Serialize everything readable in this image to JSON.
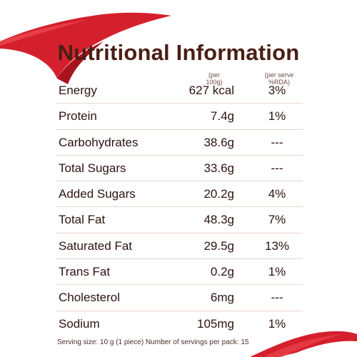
{
  "title": "Nutritional Information",
  "headers": {
    "per100": "(per 100g)",
    "perServe": "(per serve %RDA)"
  },
  "rows": [
    {
      "name": "Energy",
      "value": "627 kcal",
      "rda": "3%"
    },
    {
      "name": "Protein",
      "value": "7.4g",
      "rda": "1%"
    },
    {
      "name": "Carbohydrates",
      "value": "38.6g",
      "rda": "---"
    },
    {
      "name": "Total Sugars",
      "value": "33.6g",
      "rda": "---"
    },
    {
      "name": "Added Sugars",
      "value": "20.2g",
      "rda": "4%"
    },
    {
      "name": "Total Fat",
      "value": "48.3g",
      "rda": "7%"
    },
    {
      "name": "Saturated Fat",
      "value": "29.5g",
      "rda": "13%"
    },
    {
      "name": "Trans Fat",
      "value": "0.2g",
      "rda": "1%"
    },
    {
      "name": "Cholesterol",
      "value": "6mg",
      "rda": "---"
    },
    {
      "name": "Sodium",
      "value": "105mg",
      "rda": "1%"
    }
  ],
  "footer": "Serving size: 10 g (1 piece) Number of servings per pack: 15",
  "colors": {
    "ribbon": "#d4202c",
    "title": "#4a1e14"
  }
}
